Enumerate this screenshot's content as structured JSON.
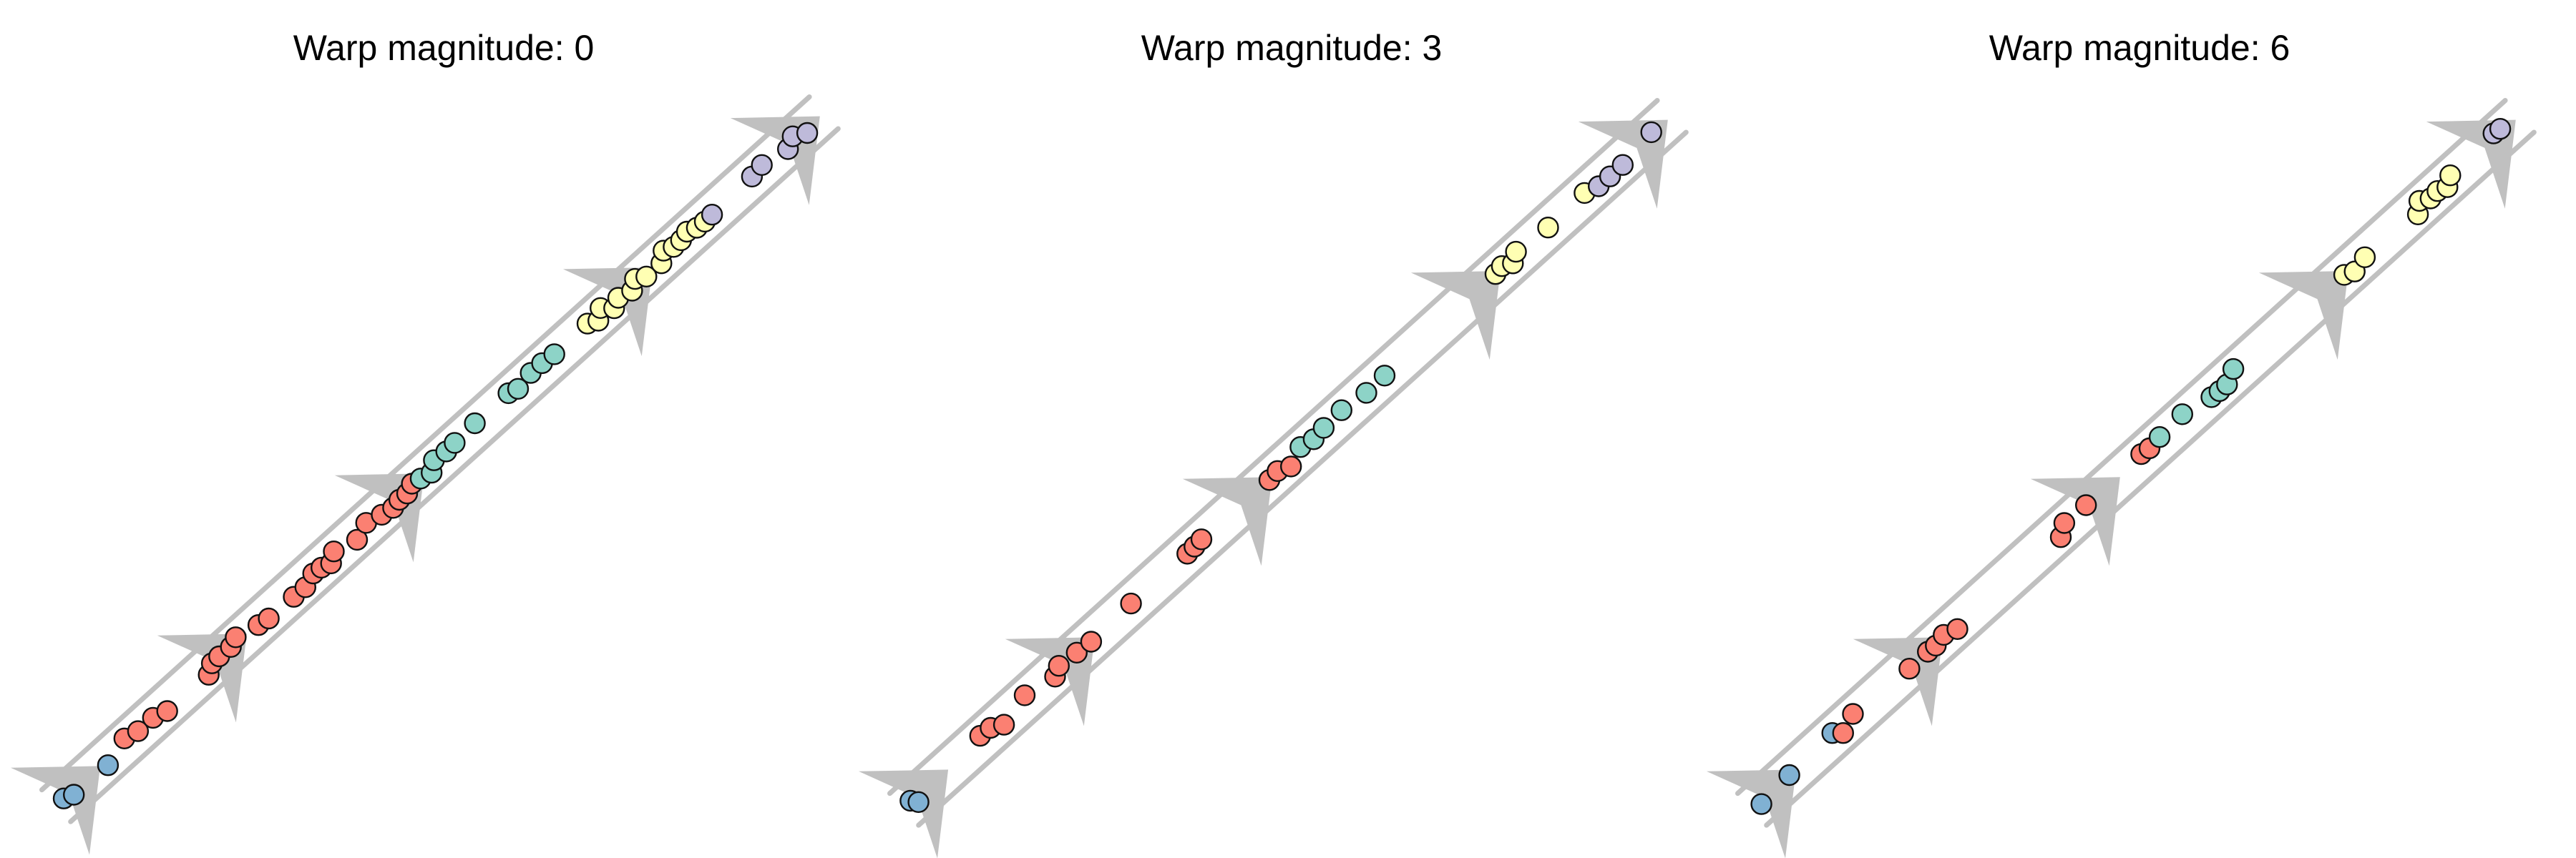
{
  "panels": [
    {
      "title": "Warp magnitude: 0",
      "milestones": [
        0.042,
        0.232,
        0.462,
        0.758
      ],
      "cells": [
        {
          "t": 0.0,
          "g": "blue"
        },
        {
          "t": 0.01,
          "g": "blue"
        },
        {
          "t": 0.055,
          "g": "blue"
        },
        {
          "t": 0.085,
          "g": "red"
        },
        {
          "t": 0.1,
          "g": "red"
        },
        {
          "t": 0.12,
          "g": "red"
        },
        {
          "t": 0.135,
          "g": "red"
        },
        {
          "t": 0.19,
          "g": "red"
        },
        {
          "t": 0.2,
          "g": "red"
        },
        {
          "t": 0.21,
          "g": "red"
        },
        {
          "t": 0.225,
          "g": "red"
        },
        {
          "t": 0.235,
          "g": "red"
        },
        {
          "t": 0.26,
          "g": "red"
        },
        {
          "t": 0.272,
          "g": "red"
        },
        {
          "t": 0.305,
          "g": "red"
        },
        {
          "t": 0.32,
          "g": "red"
        },
        {
          "t": 0.335,
          "g": "red"
        },
        {
          "t": 0.345,
          "g": "red"
        },
        {
          "t": 0.355,
          "g": "red"
        },
        {
          "t": 0.365,
          "g": "red"
        },
        {
          "t": 0.39,
          "g": "red"
        },
        {
          "t": 0.408,
          "g": "red"
        },
        {
          "t": 0.425,
          "g": "red"
        },
        {
          "t": 0.438,
          "g": "red"
        },
        {
          "t": 0.448,
          "g": "red"
        },
        {
          "t": 0.458,
          "g": "red"
        },
        {
          "t": 0.468,
          "g": "red"
        },
        {
          "t": 0.478,
          "g": "teal"
        },
        {
          "t": 0.49,
          "g": "teal"
        },
        {
          "t": 0.5,
          "g": "teal"
        },
        {
          "t": 0.515,
          "g": "teal"
        },
        {
          "t": 0.527,
          "g": "teal"
        },
        {
          "t": 0.555,
          "g": "teal"
        },
        {
          "t": 0.6,
          "g": "teal"
        },
        {
          "t": 0.61,
          "g": "teal"
        },
        {
          "t": 0.63,
          "g": "teal"
        },
        {
          "t": 0.645,
          "g": "teal"
        },
        {
          "t": 0.66,
          "g": "teal"
        },
        {
          "t": 0.705,
          "g": "yellow"
        },
        {
          "t": 0.715,
          "g": "yellow"
        },
        {
          "t": 0.725,
          "g": "yellow"
        },
        {
          "t": 0.735,
          "g": "yellow"
        },
        {
          "t": 0.745,
          "g": "yellow"
        },
        {
          "t": 0.76,
          "g": "yellow"
        },
        {
          "t": 0.77,
          "g": "yellow"
        },
        {
          "t": 0.78,
          "g": "yellow"
        },
        {
          "t": 0.8,
          "g": "yellow"
        },
        {
          "t": 0.81,
          "g": "yellow"
        },
        {
          "t": 0.82,
          "g": "yellow"
        },
        {
          "t": 0.83,
          "g": "yellow"
        },
        {
          "t": 0.84,
          "g": "yellow"
        },
        {
          "t": 0.85,
          "g": "yellow"
        },
        {
          "t": 0.86,
          "g": "yellow"
        },
        {
          "t": 0.87,
          "g": "purple"
        },
        {
          "t": 0.925,
          "g": "purple"
        },
        {
          "t": 0.94,
          "g": "purple"
        },
        {
          "t": 0.97,
          "g": "purple"
        },
        {
          "t": 0.982,
          "g": "purple"
        },
        {
          "t": 0.995,
          "g": "purple"
        }
      ]
    },
    {
      "title": "Warp magnitude: 3",
      "milestones": [
        0.042,
        0.232,
        0.462,
        0.758
      ],
      "cells": [
        {
          "t": 0.0,
          "g": "blue"
        },
        {
          "t": 0.005,
          "g": "blue"
        },
        {
          "t": 0.095,
          "g": "red"
        },
        {
          "t": 0.108,
          "g": "red"
        },
        {
          "t": 0.12,
          "g": "red"
        },
        {
          "t": 0.155,
          "g": "red"
        },
        {
          "t": 0.19,
          "g": "red"
        },
        {
          "t": 0.2,
          "g": "red"
        },
        {
          "t": 0.222,
          "g": "red"
        },
        {
          "t": 0.24,
          "g": "red"
        },
        {
          "t": 0.295,
          "g": "red"
        },
        {
          "t": 0.37,
          "g": "red"
        },
        {
          "t": 0.38,
          "g": "red"
        },
        {
          "t": 0.39,
          "g": "red"
        },
        {
          "t": 0.48,
          "g": "red"
        },
        {
          "t": 0.492,
          "g": "red"
        },
        {
          "t": 0.505,
          "g": "red"
        },
        {
          "t": 0.525,
          "g": "teal"
        },
        {
          "t": 0.54,
          "g": "teal"
        },
        {
          "t": 0.555,
          "g": "teal"
        },
        {
          "t": 0.58,
          "g": "teal"
        },
        {
          "t": 0.61,
          "g": "teal"
        },
        {
          "t": 0.635,
          "g": "teal"
        },
        {
          "t": 0.785,
          "g": "yellow"
        },
        {
          "t": 0.795,
          "g": "yellow"
        },
        {
          "t": 0.805,
          "g": "yellow"
        },
        {
          "t": 0.815,
          "g": "yellow"
        },
        {
          "t": 0.855,
          "g": "yellow"
        },
        {
          "t": 0.905,
          "g": "yellow"
        },
        {
          "t": 0.92,
          "g": "purple"
        },
        {
          "t": 0.935,
          "g": "purple"
        },
        {
          "t": 0.952,
          "g": "purple"
        },
        {
          "t": 0.995,
          "g": "purple"
        }
      ]
    },
    {
      "title": "Warp magnitude: 6",
      "milestones": [
        0.042,
        0.232,
        0.462,
        0.758
      ],
      "cells": [
        {
          "t": 0.0,
          "g": "blue"
        },
        {
          "t": 0.04,
          "g": "blue"
        },
        {
          "t": 0.1,
          "g": "blue"
        },
        {
          "t": 0.108,
          "g": "red"
        },
        {
          "t": 0.128,
          "g": "red"
        },
        {
          "t": 0.2,
          "g": "red"
        },
        {
          "t": 0.225,
          "g": "red"
        },
        {
          "t": 0.235,
          "g": "red"
        },
        {
          "t": 0.248,
          "g": "red"
        },
        {
          "t": 0.262,
          "g": "red"
        },
        {
          "t": 0.4,
          "g": "red"
        },
        {
          "t": 0.412,
          "g": "red"
        },
        {
          "t": 0.44,
          "g": "red"
        },
        {
          "t": 0.515,
          "g": "red"
        },
        {
          "t": 0.525,
          "g": "red"
        },
        {
          "t": 0.54,
          "g": "teal"
        },
        {
          "t": 0.572,
          "g": "teal"
        },
        {
          "t": 0.605,
          "g": "teal"
        },
        {
          "t": 0.615,
          "g": "teal"
        },
        {
          "t": 0.625,
          "g": "teal"
        },
        {
          "t": 0.64,
          "g": "teal"
        },
        {
          "t": 0.785,
          "g": "yellow"
        },
        {
          "t": 0.795,
          "g": "yellow"
        },
        {
          "t": 0.812,
          "g": "yellow"
        },
        {
          "t": 0.88,
          "g": "yellow"
        },
        {
          "t": 0.89,
          "g": "yellow"
        },
        {
          "t": 0.9,
          "g": "yellow"
        },
        {
          "t": 0.91,
          "g": "yellow"
        },
        {
          "t": 0.92,
          "g": "yellow"
        },
        {
          "t": 0.93,
          "g": "yellow"
        },
        {
          "t": 0.99,
          "g": "purple"
        },
        {
          "t": 0.998,
          "g": "purple"
        }
      ]
    }
  ],
  "colors": {
    "blue": "#80b1d3",
    "red": "#fb8072",
    "teal": "#8dd3c7",
    "yellow": "#ffffb3",
    "purple": "#bebada",
    "trajectory": "#c0c0c0",
    "cell_outline": "#111111"
  }
}
